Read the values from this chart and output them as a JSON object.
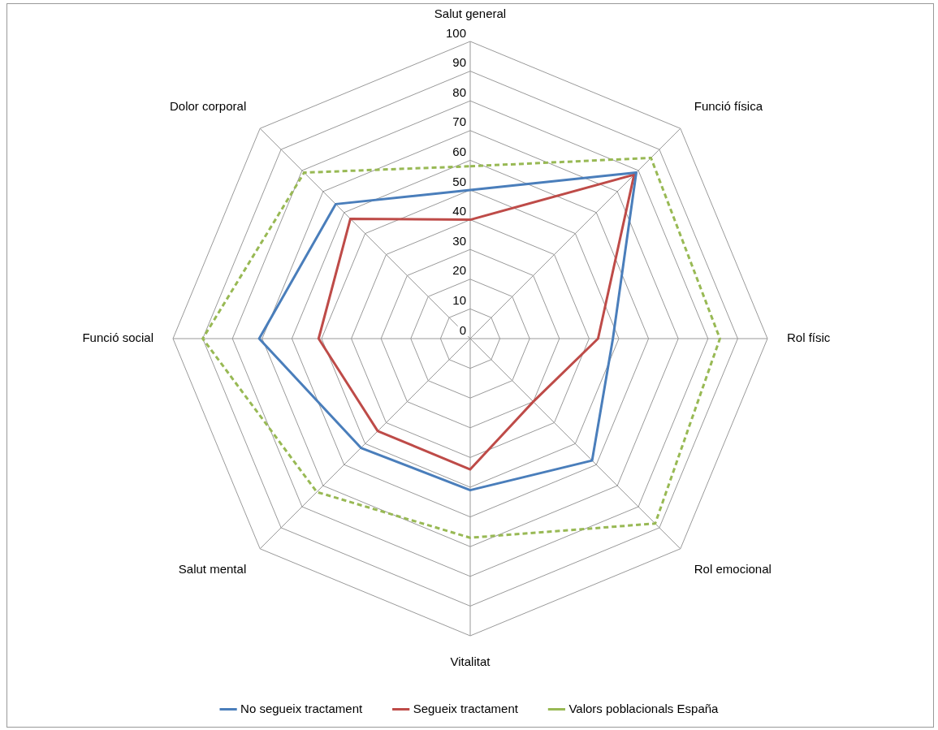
{
  "chart_data": {
    "type": "radar",
    "categories": [
      "Salut general",
      "Funció física",
      "Rol físic",
      "Rol emocional",
      "Vitalitat",
      "Salut mental",
      "Funció social",
      "Dolor corporal"
    ],
    "series": [
      {
        "name": "No segueix tractament",
        "color": "#4a7ebb",
        "values": [
          50,
          79,
          48,
          58,
          51,
          52,
          71,
          64
        ]
      },
      {
        "name": "Segueix tractament",
        "color": "#be4b48",
        "values": [
          40,
          78,
          43,
          30,
          44,
          44,
          51,
          57
        ]
      },
      {
        "name": "Valors poblacionals España",
        "color": "#98b954",
        "values": [
          58,
          86,
          84,
          88,
          67,
          73,
          90,
          79
        ],
        "line_style": "dashed"
      }
    ],
    "ylim": [
      0,
      100
    ],
    "yticks": [
      0,
      10,
      20,
      30,
      40,
      50,
      60,
      70,
      80,
      90,
      100
    ],
    "grid": true,
    "legend": "bottom",
    "marker": "none",
    "line_style": "solid"
  }
}
